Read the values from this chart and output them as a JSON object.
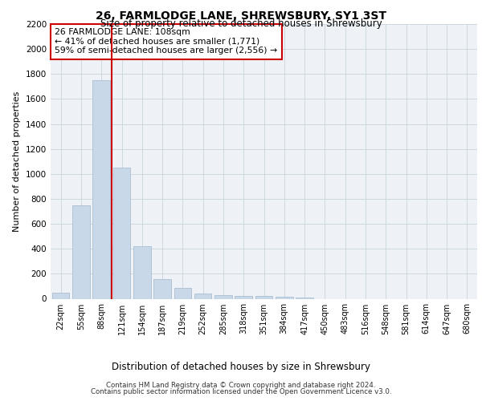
{
  "title1": "26, FARMLODGE LANE, SHREWSBURY, SY1 3ST",
  "title2": "Size of property relative to detached houses in Shrewsbury",
  "xlabel": "Distribution of detached houses by size in Shrewsbury",
  "ylabel": "Number of detached properties",
  "categories": [
    "22sqm",
    "55sqm",
    "88sqm",
    "121sqm",
    "154sqm",
    "187sqm",
    "219sqm",
    "252sqm",
    "285sqm",
    "318sqm",
    "351sqm",
    "384sqm",
    "417sqm",
    "450sqm",
    "483sqm",
    "516sqm",
    "548sqm",
    "581sqm",
    "614sqm",
    "647sqm",
    "680sqm"
  ],
  "values": [
    50,
    750,
    1750,
    1050,
    420,
    155,
    85,
    40,
    30,
    25,
    20,
    15,
    10,
    0,
    0,
    0,
    0,
    0,
    0,
    0,
    0
  ],
  "bar_color": "#c8d8e8",
  "bar_edge_color": "#a0b8cc",
  "vline_color": "#cc0000",
  "vline_index": 2.5,
  "annotation_text": "26 FARMLODGE LANE: 108sqm\n← 41% of detached houses are smaller (1,771)\n59% of semi-detached houses are larger (2,556) →",
  "annotation_box_color": "#ffffff",
  "annotation_box_edge": "#cc0000",
  "ylim": [
    0,
    2200
  ],
  "yticks": [
    0,
    200,
    400,
    600,
    800,
    1000,
    1200,
    1400,
    1600,
    1800,
    2000,
    2200
  ],
  "grid_color": "#c8d4dc",
  "background_color": "#eef2f6",
  "footer1": "Contains HM Land Registry data © Crown copyright and database right 2024.",
  "footer2": "Contains public sector information licensed under the Open Government Licence v3.0."
}
